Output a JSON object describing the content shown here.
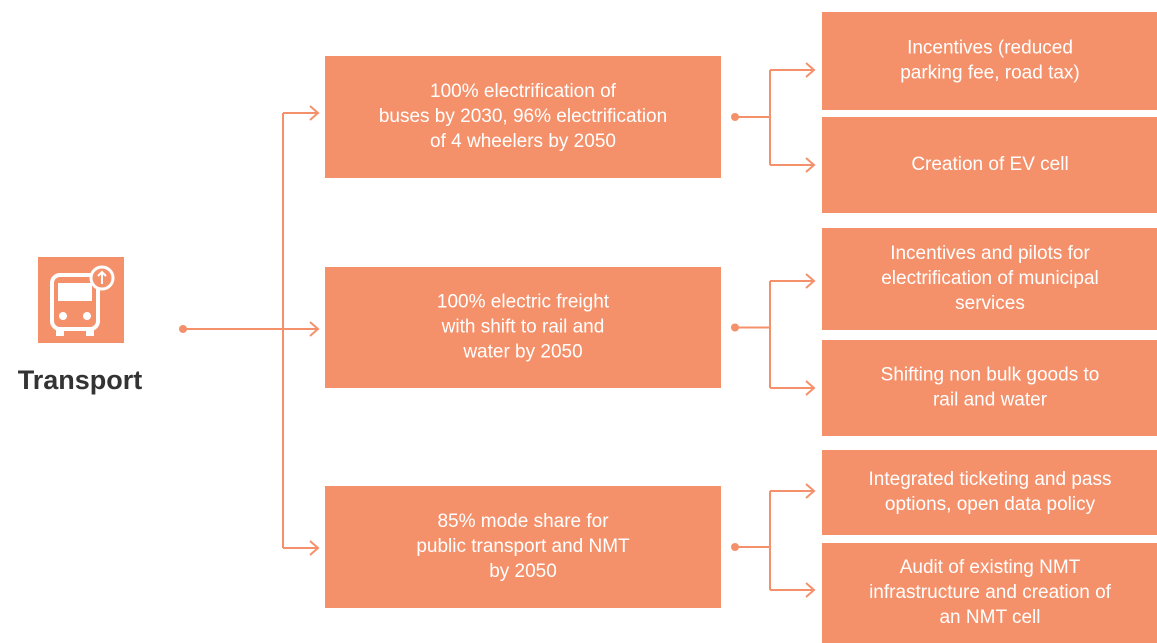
{
  "title": "Transport",
  "goals": [
    {
      "lines": [
        "100% electrification of",
        "buses by 2030, 96% electrification",
        "of 4 wheelers by 2050"
      ],
      "actions": [
        {
          "lines": [
            "Incentives (reduced",
            "parking fee, road tax)"
          ]
        },
        {
          "lines": [
            "Creation of EV cell"
          ]
        }
      ]
    },
    {
      "lines": [
        "100% electric freight",
        "with shift to rail and",
        "water by 2050"
      ],
      "actions": [
        {
          "lines": [
            "Incentives and pilots for",
            "electrification of municipal",
            "services"
          ]
        },
        {
          "lines": [
            "Shifting non bulk goods to",
            "rail and water"
          ]
        }
      ]
    },
    {
      "lines": [
        "85% mode share for",
        "public transport and NMT",
        "by 2050"
      ],
      "actions": [
        {
          "lines": [
            "Integrated ticketing and pass",
            "options, open data policy"
          ]
        },
        {
          "lines": [
            "Audit of existing NMT",
            "infrastructure and creation of",
            "an NMT cell"
          ]
        }
      ]
    }
  ]
}
